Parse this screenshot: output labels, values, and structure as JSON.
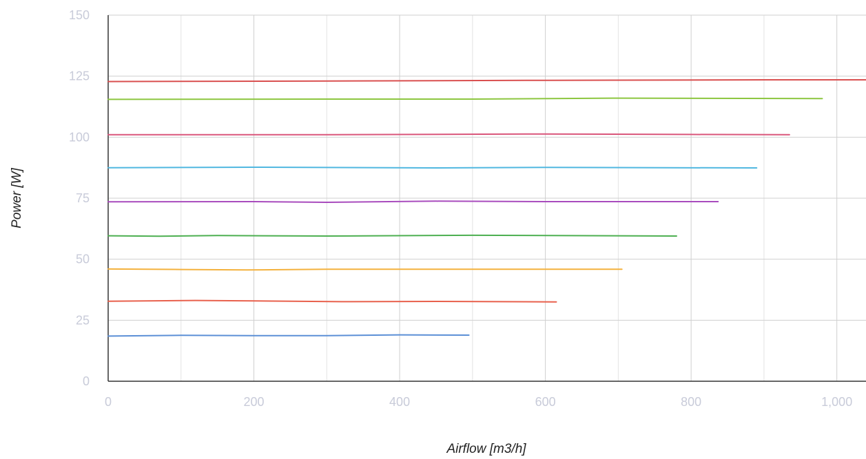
{
  "chart_data": {
    "type": "line",
    "title": "",
    "xlabel": "Airflow [m3/h]",
    "ylabel": "Power [W]",
    "xlim": [
      0,
      1040
    ],
    "ylim": [
      0,
      150
    ],
    "x_ticks": [
      0,
      200,
      400,
      600,
      800,
      1000
    ],
    "x_tick_labels": [
      "0",
      "200",
      "400",
      "600",
      "800",
      "1,000"
    ],
    "y_ticks": [
      0,
      25,
      50,
      75,
      100,
      125,
      150
    ],
    "y_tick_labels": [
      "0",
      "25",
      "50",
      "75",
      "100",
      "125",
      "150"
    ],
    "grid": true,
    "legend": "none",
    "series": [
      {
        "color": "#5b8fd6",
        "points": [
          [
            0,
            18.5
          ],
          [
            100,
            18.8
          ],
          [
            200,
            18.7
          ],
          [
            300,
            18.7
          ],
          [
            400,
            19.0
          ],
          [
            495,
            18.9
          ]
        ]
      },
      {
        "color": "#e8604c",
        "points": [
          [
            0,
            32.8
          ],
          [
            120,
            33.1
          ],
          [
            200,
            32.9
          ],
          [
            320,
            32.6
          ],
          [
            450,
            32.7
          ],
          [
            615,
            32.5
          ]
        ]
      },
      {
        "color": "#f4b13c",
        "points": [
          [
            0,
            46.0
          ],
          [
            100,
            45.8
          ],
          [
            190,
            45.6
          ],
          [
            300,
            45.9
          ],
          [
            500,
            45.9
          ],
          [
            705,
            45.9
          ]
        ]
      },
      {
        "color": "#4caf50",
        "points": [
          [
            0,
            59.6
          ],
          [
            70,
            59.4
          ],
          [
            150,
            59.7
          ],
          [
            300,
            59.5
          ],
          [
            500,
            59.8
          ],
          [
            780,
            59.5
          ]
        ]
      },
      {
        "color": "#a84bbd",
        "points": [
          [
            0,
            73.5
          ],
          [
            200,
            73.6
          ],
          [
            300,
            73.3
          ],
          [
            450,
            73.8
          ],
          [
            600,
            73.6
          ],
          [
            837,
            73.6
          ]
        ]
      },
      {
        "color": "#4fb7e0",
        "points": [
          [
            0,
            87.5
          ],
          [
            200,
            87.7
          ],
          [
            450,
            87.4
          ],
          [
            600,
            87.6
          ],
          [
            890,
            87.4
          ]
        ]
      },
      {
        "color": "#d9557a",
        "points": [
          [
            0,
            101.0
          ],
          [
            300,
            101.0
          ],
          [
            600,
            101.3
          ],
          [
            800,
            101.1
          ],
          [
            935,
            101.0
          ]
        ]
      },
      {
        "color": "#8cc63f",
        "points": [
          [
            0,
            115.5
          ],
          [
            300,
            115.6
          ],
          [
            500,
            115.6
          ],
          [
            700,
            116.0
          ],
          [
            980,
            115.8
          ]
        ]
      },
      {
        "color": "#d94f4f",
        "points": [
          [
            0,
            122.8
          ],
          [
            300,
            123.0
          ],
          [
            600,
            123.3
          ],
          [
            900,
            123.5
          ],
          [
            1040,
            123.5
          ]
        ]
      }
    ]
  }
}
